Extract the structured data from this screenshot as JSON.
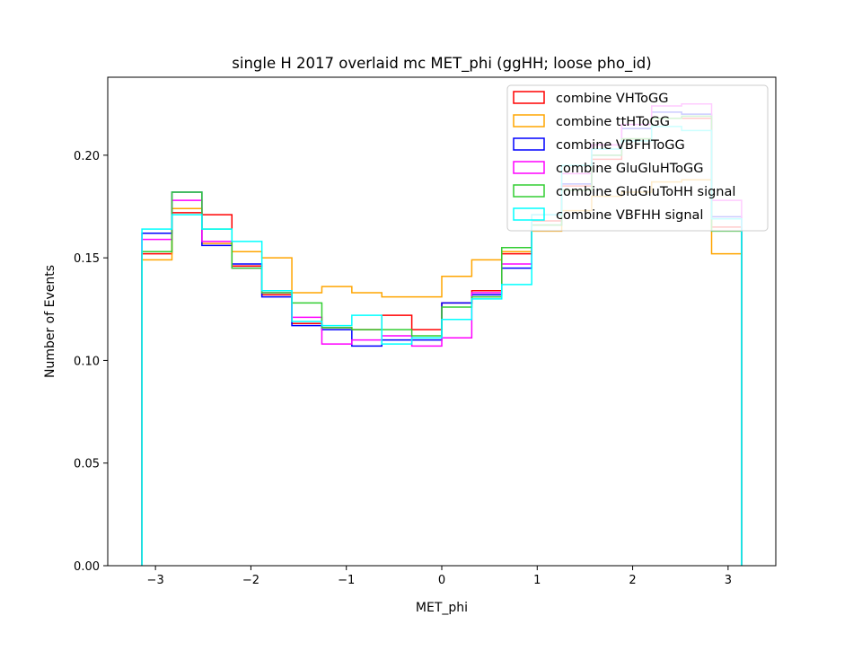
{
  "chart_data": {
    "type": "histogram",
    "title": "single H 2017 overlaid mc MET_phi (ggHH; loose pho_id)",
    "xlabel": "MET_phi",
    "ylabel": "Number of Events",
    "xlim": [
      -3.5,
      3.5
    ],
    "ylim": [
      0,
      0.238
    ],
    "xticks": [
      -3,
      -2,
      -1,
      0,
      1,
      2,
      3
    ],
    "xtick_labels": [
      "−3",
      "−2",
      "−1",
      "0",
      "1",
      "2",
      "3"
    ],
    "yticks": [
      0.0,
      0.05,
      0.1,
      0.15,
      0.2
    ],
    "ytick_labels": [
      "0.00",
      "0.05",
      "0.10",
      "0.15",
      "0.20"
    ],
    "grid": false,
    "legend_position": "upper right",
    "bin_edges": [
      -3.1416,
      -2.8274,
      -2.5133,
      -2.1991,
      -1.885,
      -1.5708,
      -1.2566,
      -0.9425,
      -0.6283,
      -0.3142,
      0.0,
      0.3142,
      0.6283,
      0.9425,
      1.2566,
      1.5708,
      1.885,
      2.1991,
      2.5133,
      2.8274,
      3.1416
    ],
    "series": [
      {
        "name": "combine VHToGG",
        "color": "#ff0000",
        "values": [
          0.152,
          0.172,
          0.171,
          0.146,
          0.132,
          0.118,
          0.116,
          0.115,
          0.122,
          0.115,
          0.128,
          0.134,
          0.152,
          0.168,
          0.185,
          0.198,
          0.208,
          0.218,
          0.218,
          0.165
        ]
      },
      {
        "name": "combine ttHToGG",
        "color": "#ffa500",
        "values": [
          0.149,
          0.174,
          0.157,
          0.153,
          0.15,
          0.133,
          0.136,
          0.133,
          0.131,
          0.131,
          0.141,
          0.149,
          0.153,
          0.163,
          0.173,
          0.18,
          0.182,
          0.187,
          0.188,
          0.152
        ]
      },
      {
        "name": "combine VBFHToGG",
        "color": "#0000ff",
        "values": [
          0.162,
          0.182,
          0.156,
          0.147,
          0.131,
          0.117,
          0.115,
          0.107,
          0.11,
          0.11,
          0.128,
          0.132,
          0.145,
          0.166,
          0.186,
          0.2,
          0.213,
          0.221,
          0.22,
          0.17
        ]
      },
      {
        "name": "combine GluGluHToGG",
        "color": "#ff00ff",
        "values": [
          0.159,
          0.178,
          0.158,
          0.145,
          0.133,
          0.121,
          0.108,
          0.11,
          0.112,
          0.107,
          0.111,
          0.133,
          0.147,
          0.171,
          0.191,
          0.205,
          0.215,
          0.224,
          0.225,
          0.178
        ]
      },
      {
        "name": "combine GluGluToHH signal",
        "color": "#32cd32",
        "values": [
          0.153,
          0.182,
          0.164,
          0.145,
          0.133,
          0.128,
          0.116,
          0.115,
          0.115,
          0.112,
          0.126,
          0.131,
          0.155,
          0.166,
          0.183,
          0.2,
          0.208,
          0.218,
          0.219,
          0.163
        ]
      },
      {
        "name": "combine VBFHH signal",
        "color": "#00ffff",
        "values": [
          0.164,
          0.171,
          0.164,
          0.158,
          0.134,
          0.119,
          0.117,
          0.122,
          0.108,
          0.111,
          0.12,
          0.13,
          0.137,
          0.171,
          0.195,
          0.203,
          0.207,
          0.214,
          0.212,
          0.169
        ]
      }
    ]
  }
}
